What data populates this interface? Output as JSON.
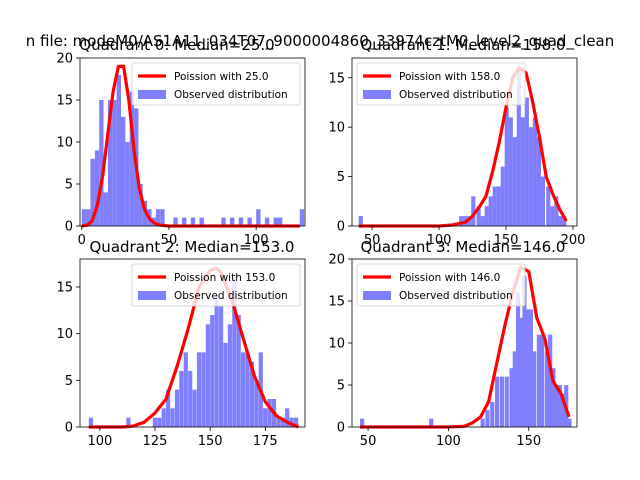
{
  "figure": {
    "title": "n file: modeM0/AS1A11_034T07_9000004860_33974cztM0_level2_quad_clean",
    "bar_color": "#8080ff",
    "curve_color": "#ff0000"
  },
  "chart_data": [
    {
      "type": "bar",
      "title": "Quadrant 0: Median=25.0",
      "median": 25.0,
      "xlim": [
        -1,
        128
      ],
      "ylim": [
        0,
        20
      ],
      "xticks": [
        0,
        50,
        100
      ],
      "yticks": [
        0,
        5,
        10,
        15,
        20
      ],
      "bin_width": 2.5,
      "bins": [
        [
          0,
          2
        ],
        [
          2.5,
          2
        ],
        [
          5,
          8
        ],
        [
          7.5,
          9
        ],
        [
          10,
          15
        ],
        [
          12.5,
          4
        ],
        [
          15,
          15
        ],
        [
          17.5,
          15
        ],
        [
          20,
          18
        ],
        [
          22.5,
          13
        ],
        [
          25,
          10
        ],
        [
          27.5,
          16
        ],
        [
          30,
          14
        ],
        [
          32.5,
          5
        ],
        [
          35,
          3
        ],
        [
          37.5,
          2
        ],
        [
          40,
          1
        ],
        [
          42.5,
          2
        ],
        [
          45,
          2
        ],
        [
          52.5,
          1
        ],
        [
          57.5,
          1
        ],
        [
          62.5,
          1
        ],
        [
          67.5,
          1
        ],
        [
          80,
          1
        ],
        [
          85,
          1
        ],
        [
          90,
          1
        ],
        [
          95,
          1
        ],
        [
          100,
          2
        ],
        [
          105,
          1
        ],
        [
          110,
          1
        ],
        [
          112.5,
          1
        ],
        [
          125,
          2
        ]
      ],
      "curve": {
        "label": "Poission with 25.0",
        "x": [
          0,
          3,
          6,
          9,
          12,
          15,
          18,
          21,
          24,
          27,
          30,
          33,
          36,
          39,
          42,
          45,
          50,
          60,
          80,
          100,
          125
        ],
        "y": [
          0,
          0.1,
          0.6,
          2.5,
          6,
          11,
          16,
          19,
          19,
          15,
          9,
          4.5,
          2,
          0.8,
          0.3,
          0.1,
          0,
          0,
          0,
          0,
          0
        ]
      },
      "legend": [
        "Poission with 25.0",
        "Observed distribution"
      ],
      "legend_loc": "upper right"
    },
    {
      "type": "bar",
      "title": "Quadrant 1: Median=158.0",
      "median": 158.0,
      "xlim": [
        35,
        203
      ],
      "ylim": [
        0,
        17
      ],
      "xticks": [
        50,
        100,
        150,
        200
      ],
      "yticks": [
        0,
        5,
        10,
        15
      ],
      "bin_width": 3.1,
      "bins": [
        [
          40,
          1
        ],
        [
          115,
          1
        ],
        [
          118,
          1
        ],
        [
          121,
          1
        ],
        [
          124,
          3
        ],
        [
          128,
          2
        ],
        [
          131,
          1
        ],
        [
          134,
          2
        ],
        [
          137,
          3
        ],
        [
          140,
          4
        ],
        [
          143,
          4
        ],
        [
          146,
          6
        ],
        [
          149,
          12
        ],
        [
          152,
          11
        ],
        [
          155,
          9
        ],
        [
          158,
          16
        ],
        [
          161,
          11
        ],
        [
          164,
          13
        ],
        [
          167,
          10
        ],
        [
          170,
          11
        ],
        [
          173,
          9
        ],
        [
          176,
          5
        ],
        [
          180,
          4
        ],
        [
          183,
          2
        ],
        [
          186,
          3
        ],
        [
          189,
          1
        ],
        [
          192,
          1
        ]
      ],
      "curve": {
        "label": "Poission with 158.0",
        "x": [
          40,
          100,
          110,
          120,
          125,
          130,
          135,
          140,
          145,
          150,
          155,
          160,
          165,
          170,
          175,
          180,
          185,
          190,
          195
        ],
        "y": [
          0,
          0,
          0.1,
          0.4,
          1,
          1.9,
          3,
          5.5,
          8.5,
          12,
          15,
          16,
          15.5,
          12.5,
          9,
          5,
          3.2,
          1.7,
          0.5
        ]
      },
      "legend": [
        "Poission with 158.0",
        "Observed distribution"
      ],
      "legend_loc": "upper left"
    },
    {
      "type": "bar",
      "title": "Quadrant 2: Median=153.0",
      "median": 153.0,
      "xlim": [
        91,
        193
      ],
      "ylim": [
        0,
        18
      ],
      "xticks": [
        100,
        125,
        150,
        175
      ],
      "yticks": [
        0,
        5,
        10,
        15
      ],
      "bin_width": 1.9,
      "bins": [
        [
          95,
          1
        ],
        [
          112,
          1
        ],
        [
          124,
          1
        ],
        [
          126,
          1
        ],
        [
          128,
          2
        ],
        [
          130,
          4
        ],
        [
          132,
          2
        ],
        [
          134,
          4
        ],
        [
          136,
          6
        ],
        [
          138,
          8
        ],
        [
          140,
          6
        ],
        [
          142,
          4
        ],
        [
          144,
          8
        ],
        [
          146,
          8
        ],
        [
          148,
          11
        ],
        [
          150,
          12
        ],
        [
          152,
          14
        ],
        [
          154,
          13
        ],
        [
          156,
          9
        ],
        [
          158,
          11
        ],
        [
          160,
          16
        ],
        [
          162,
          12
        ],
        [
          164,
          8
        ],
        [
          166,
          8
        ],
        [
          168,
          7
        ],
        [
          170,
          5
        ],
        [
          172,
          8
        ],
        [
          174,
          2
        ],
        [
          176,
          3
        ],
        [
          178,
          3
        ],
        [
          180,
          1
        ],
        [
          182,
          1
        ],
        [
          184,
          2
        ],
        [
          186,
          1
        ],
        [
          188,
          1
        ]
      ],
      "curve": {
        "label": "Poission with 153.0",
        "x": [
          95,
          110,
          115,
          120,
          125,
          130,
          135,
          140,
          145,
          150,
          153,
          155,
          160,
          165,
          170,
          175,
          180,
          185,
          190
        ],
        "y": [
          0,
          0,
          0.1,
          0.5,
          1.5,
          3,
          6.5,
          10.5,
          15,
          16.8,
          17,
          16.5,
          13.5,
          9.5,
          5.5,
          2.7,
          1.2,
          0.5,
          0
        ]
      },
      "legend": [
        "Poission with 153.0",
        "Observed distribution"
      ],
      "legend_loc": "upper right"
    },
    {
      "type": "bar",
      "title": "Quadrant 3: Median=146.0",
      "median": 146.0,
      "xlim": [
        40,
        180
      ],
      "ylim": [
        0,
        20
      ],
      "xticks": [
        50,
        100,
        150
      ],
      "yticks": [
        0,
        5,
        10,
        15,
        20
      ],
      "bin_width": 2.6,
      "bins": [
        [
          45,
          1
        ],
        [
          88,
          1
        ],
        [
          120,
          1
        ],
        [
          123,
          2
        ],
        [
          126,
          3
        ],
        [
          129,
          6
        ],
        [
          132,
          6
        ],
        [
          135,
          6
        ],
        [
          138,
          7
        ],
        [
          140,
          9
        ],
        [
          142,
          16
        ],
        [
          144,
          13
        ],
        [
          146,
          18
        ],
        [
          148,
          14
        ],
        [
          150,
          14
        ],
        [
          152,
          9
        ],
        [
          155,
          11
        ],
        [
          157,
          11
        ],
        [
          160,
          9
        ],
        [
          162,
          11
        ],
        [
          164,
          7
        ],
        [
          166,
          5
        ],
        [
          168,
          5
        ],
        [
          170,
          4
        ],
        [
          172,
          5
        ],
        [
          174,
          1
        ]
      ],
      "curve": {
        "label": "Poission with 146.0",
        "x": [
          45,
          100,
          110,
          115,
          120,
          125,
          130,
          135,
          140,
          145,
          150,
          155,
          160,
          165,
          170,
          175
        ],
        "y": [
          0,
          0,
          0.1,
          0.5,
          1.2,
          3,
          7.5,
          12,
          16,
          19,
          18.5,
          13,
          10.5,
          5.5,
          4,
          1.2
        ]
      },
      "legend": [
        "Poission with 146.0",
        "Observed distribution"
      ],
      "legend_loc": "upper left"
    }
  ]
}
